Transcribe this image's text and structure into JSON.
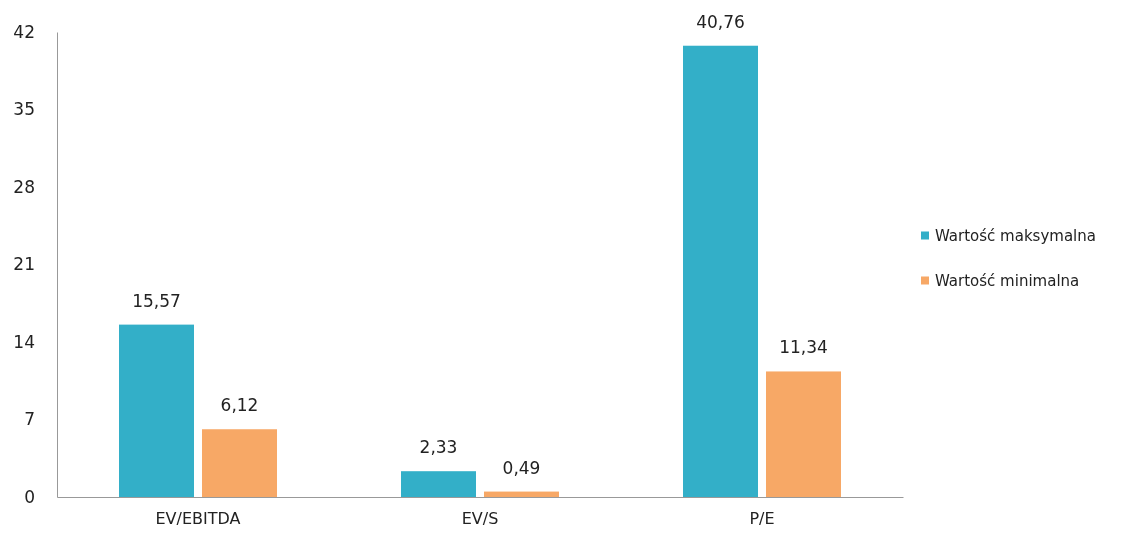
{
  "chart_data": {
    "type": "bar",
    "categories": [
      "EV/EBITDA",
      "EV/S",
      "P/E"
    ],
    "series": [
      {
        "name": "Wartość maksymalna",
        "color": "#33afc8",
        "values": [
          15.57,
          2.33,
          40.76
        ],
        "value_labels": [
          "15,57",
          "2,33",
          "40,76"
        ]
      },
      {
        "name": "Wartość minimalna",
        "color": "#f7a866",
        "values": [
          6.12,
          0.49,
          11.34
        ],
        "value_labels": [
          "6,12",
          "0,49",
          "11,34"
        ]
      }
    ],
    "ylim": [
      0,
      42
    ],
    "yticks": [
      0,
      7,
      14,
      21,
      28,
      35,
      42
    ],
    "grid": false,
    "legend": "right"
  }
}
